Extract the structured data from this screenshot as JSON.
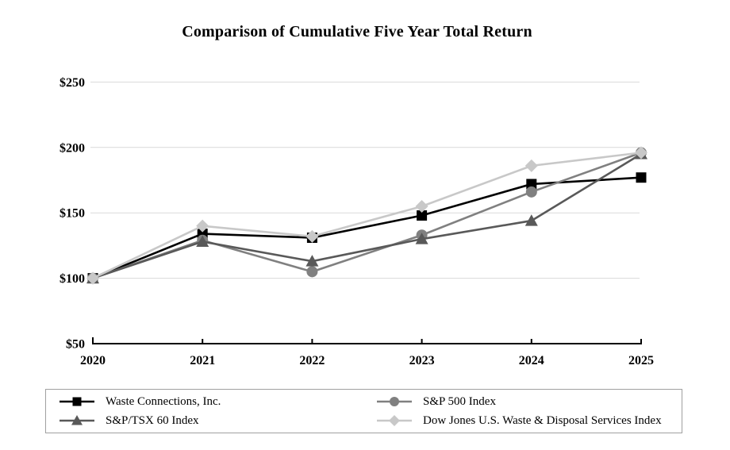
{
  "chart_data": {
    "type": "line",
    "title": "Comparison of Cumulative Five Year Total Return",
    "x_categories": [
      "2020",
      "2021",
      "2022",
      "2023",
      "2024",
      "2025"
    ],
    "y_ticks": [
      "$250",
      "$200",
      "$150",
      "$100",
      "$50"
    ],
    "y_tick_values": [
      250,
      200,
      150,
      100,
      50
    ],
    "ylim": [
      50,
      250
    ],
    "grid": true,
    "legend_position": "bottom-box",
    "series": [
      {
        "name": "Waste Connections, Inc.",
        "marker": "square",
        "color": "#000000",
        "values": [
          100,
          134,
          131,
          148,
          172,
          177
        ]
      },
      {
        "name": "S&P 500 Index",
        "marker": "circle",
        "color": "#808080",
        "values": [
          100,
          129,
          105,
          133,
          166,
          196
        ]
      },
      {
        "name": "S&P/TSX 60 Index",
        "marker": "triangle",
        "color": "#595959",
        "values": [
          100,
          128,
          113,
          130,
          144,
          195
        ]
      },
      {
        "name": "Dow Jones U.S. Waste & Disposal Services Index",
        "marker": "diamond",
        "color": "#c8c8c8",
        "values": [
          100,
          140,
          132,
          155,
          186,
          196
        ]
      }
    ],
    "colors": {
      "gridline": "#d9d9d9",
      "axis": "#000000",
      "text": "#000000"
    }
  }
}
